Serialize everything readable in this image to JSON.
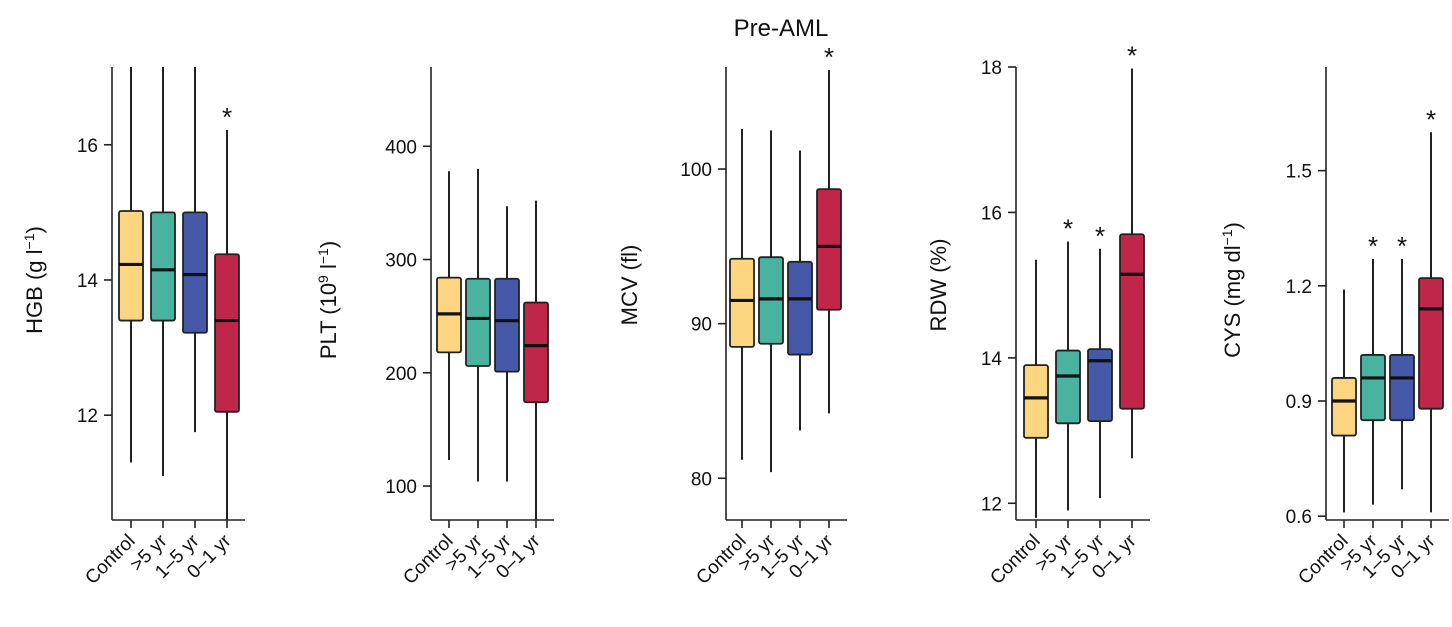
{
  "figure_title": "Pre-AML",
  "chart_data": [
    {
      "type": "box",
      "id": "hgb",
      "ylabel": "HGB (g l−1)",
      "ylabel_parts": {
        "prefix": "HGB (g l",
        "sup": "−1",
        "suffix": ")"
      },
      "ylim": [
        10.45,
        17.15
      ],
      "yticks": [
        12,
        14,
        16
      ],
      "categories": [
        "Control",
        ">5 yr",
        "1–5 yr",
        "0–1 yr"
      ],
      "boxes": [
        {
          "category": "Control",
          "whisker_low": 11.3,
          "q1": 13.4,
          "median": 14.23,
          "q3": 15.02,
          "whisker_high": 17.15,
          "significant": false
        },
        {
          "category": ">5 yr",
          "whisker_low": 11.1,
          "q1": 13.4,
          "median": 14.15,
          "q3": 15.0,
          "whisker_high": 17.15,
          "significant": false
        },
        {
          "category": "1–5 yr",
          "whisker_low": 11.75,
          "q1": 13.22,
          "median": 14.08,
          "q3": 15.0,
          "whisker_high": 17.15,
          "significant": false
        },
        {
          "category": "0–1 yr",
          "whisker_low": 10.45,
          "q1": 12.05,
          "median": 13.4,
          "q3": 14.38,
          "whisker_high": 16.22,
          "significant": true
        }
      ]
    },
    {
      "type": "box",
      "id": "plt",
      "ylabel": "PLT (10⁹ l−1)",
      "ylabel_parts": {
        "prefix": "PLT (10",
        "sup": "9",
        "mid": " l",
        "sup2": "−1",
        "suffix": ")"
      },
      "ylim": [
        70,
        470
      ],
      "yticks": [
        100,
        200,
        300,
        400
      ],
      "categories": [
        "Control",
        ">5 yr",
        "1–5 yr",
        "0–1 yr"
      ],
      "boxes": [
        {
          "category": "Control",
          "whisker_low": 123,
          "q1": 218,
          "median": 252,
          "q3": 284,
          "whisker_high": 378,
          "significant": false
        },
        {
          "category": ">5 yr",
          "whisker_low": 104,
          "q1": 206,
          "median": 248,
          "q3": 283,
          "whisker_high": 380,
          "significant": false
        },
        {
          "category": "1–5 yr",
          "whisker_low": 104,
          "q1": 201,
          "median": 246,
          "q3": 283,
          "whisker_high": 347,
          "significant": false
        },
        {
          "category": "0–1 yr",
          "whisker_low": 70,
          "q1": 174,
          "median": 224,
          "q3": 262,
          "whisker_high": 352,
          "significant": false
        }
      ]
    },
    {
      "type": "box",
      "id": "mcv",
      "ylabel": "MCV (fl)",
      "ylim": [
        77.3,
        106.6
      ],
      "yticks": [
        80,
        90,
        100
      ],
      "categories": [
        "Control",
        ">5 yr",
        "1–5 yr",
        "0–1 yr"
      ],
      "boxes": [
        {
          "category": "Control",
          "whisker_low": 81.2,
          "q1": 88.5,
          "median": 91.5,
          "q3": 94.2,
          "whisker_high": 102.6,
          "significant": false
        },
        {
          "category": ">5 yr",
          "whisker_low": 80.4,
          "q1": 88.7,
          "median": 91.6,
          "q3": 94.3,
          "whisker_high": 102.5,
          "significant": false
        },
        {
          "category": "1–5 yr",
          "whisker_low": 83.1,
          "q1": 88.0,
          "median": 91.6,
          "q3": 94.0,
          "whisker_high": 101.2,
          "significant": false
        },
        {
          "category": "0–1 yr",
          "whisker_low": 84.2,
          "q1": 90.9,
          "median": 95.0,
          "q3": 98.7,
          "whisker_high": 106.4,
          "significant": true
        }
      ]
    },
    {
      "type": "box",
      "id": "rdw",
      "ylabel": "RDW (%)",
      "ylim": [
        11.77,
        18.0
      ],
      "yticks": [
        12,
        14,
        16,
        18
      ],
      "categories": [
        "Control",
        ">5 yr",
        "1–5 yr",
        "0–1 yr"
      ],
      "boxes": [
        {
          "category": "Control",
          "whisker_low": 11.8,
          "q1": 12.9,
          "median": 13.45,
          "q3": 13.9,
          "whisker_high": 15.35,
          "significant": false
        },
        {
          "category": ">5 yr",
          "whisker_low": 11.9,
          "q1": 13.1,
          "median": 13.75,
          "q3": 14.1,
          "whisker_high": 15.6,
          "significant": true
        },
        {
          "category": "1–5 yr",
          "whisker_low": 12.07,
          "q1": 13.13,
          "median": 13.96,
          "q3": 14.12,
          "whisker_high": 15.5,
          "significant": true
        },
        {
          "category": "0–1 yr",
          "whisker_low": 12.62,
          "q1": 13.3,
          "median": 15.15,
          "q3": 15.7,
          "whisker_high": 17.98,
          "significant": true
        }
      ]
    },
    {
      "type": "box",
      "id": "cys",
      "ylabel": "CYS (mg dl−1)",
      "ylabel_parts": {
        "prefix": "CYS (mg dl",
        "sup": "−1",
        "suffix": ")"
      },
      "ylim": [
        0.59,
        1.77
      ],
      "yticks": [
        0.6,
        0.9,
        1.2,
        1.5
      ],
      "yticklabels": [
        "0.6",
        "0.9",
        "1.2",
        "1.5"
      ],
      "categories": [
        "Control",
        ">5 yr",
        "1–5 yr",
        "0–1 yr"
      ],
      "boxes": [
        {
          "category": "Control",
          "whisker_low": 0.61,
          "q1": 0.81,
          "median": 0.9,
          "q3": 0.96,
          "whisker_high": 1.19,
          "significant": false
        },
        {
          "category": ">5 yr",
          "whisker_low": 0.63,
          "q1": 0.85,
          "median": 0.96,
          "q3": 1.02,
          "whisker_high": 1.27,
          "significant": true
        },
        {
          "category": "1–5 yr",
          "whisker_low": 0.67,
          "q1": 0.85,
          "median": 0.96,
          "q3": 1.02,
          "whisker_high": 1.27,
          "significant": true
        },
        {
          "category": "0–1 yr",
          "whisker_low": 0.61,
          "q1": 0.88,
          "median": 1.14,
          "q3": 1.22,
          "whisker_high": 1.6,
          "significant": true
        }
      ]
    }
  ],
  "significance_marker": "*",
  "colors": {
    "Control": "#fbd580",
    ">5 yr": "#4ab39f",
    "1–5 yr": "#4559a8",
    "0–1 yr": "#c0264a",
    "stroke": "#222222",
    "median": "#111111"
  }
}
